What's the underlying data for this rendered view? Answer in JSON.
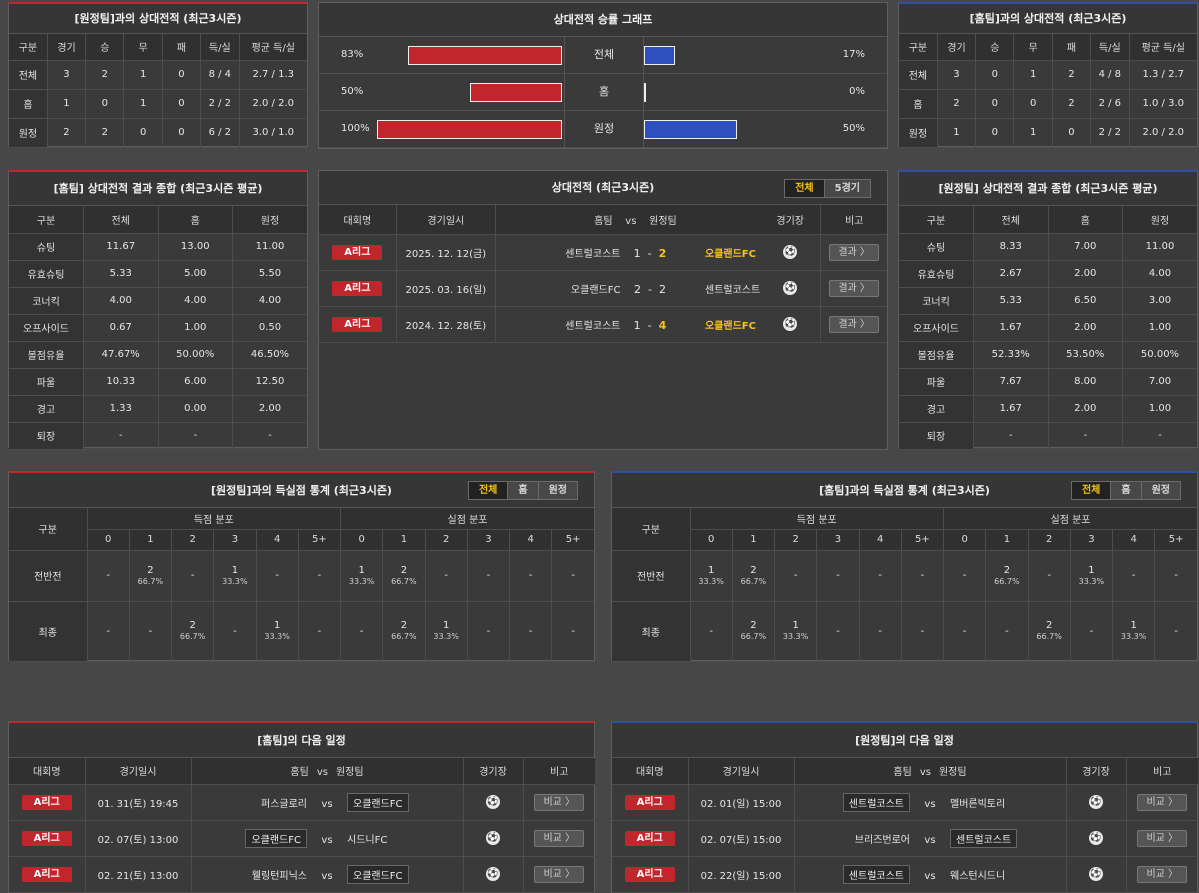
{
  "h2h_away_left": {
    "title": "[원정팀]과의 상대전적 (최근3시즌)",
    "headers": [
      "구분",
      "경기",
      "승",
      "무",
      "패",
      "득/실",
      "평균 득/실"
    ],
    "rows": [
      [
        "전체",
        "3",
        "2",
        "1",
        "0",
        "8 / 4",
        "2.7 / 1.3"
      ],
      [
        "홈",
        "1",
        "0",
        "1",
        "0",
        "2 / 2",
        "2.0 / 2.0"
      ],
      [
        "원정",
        "2",
        "2",
        "0",
        "0",
        "6 / 2",
        "3.0 / 1.0"
      ]
    ]
  },
  "h2h_home_right": {
    "title": "[홈팀]과의 상대전적 (최근3시즌)",
    "headers": [
      "구분",
      "경기",
      "승",
      "무",
      "패",
      "득/실",
      "평균 득/실"
    ],
    "rows": [
      [
        "전체",
        "3",
        "0",
        "1",
        "2",
        "4 / 8",
        "1.3 / 2.7"
      ],
      [
        "홈",
        "2",
        "0",
        "0",
        "2",
        "2 / 6",
        "1.0 / 3.0"
      ],
      [
        "원정",
        "1",
        "0",
        "1",
        "0",
        "2 / 2",
        "2.0 / 2.0"
      ]
    ]
  },
  "win_graph": {
    "title": "상대전적 승률 그래프",
    "rows": [
      {
        "label": "전체",
        "left": "83%",
        "right": "17%",
        "left_value": 83,
        "right_value": 17
      },
      {
        "label": "홈",
        "left": "50%",
        "right": "0%",
        "left_value": 50,
        "right_value": 0
      },
      {
        "label": "원정",
        "left": "100%",
        "right": "50%",
        "left_value": 100,
        "right_value": 50
      }
    ]
  },
  "summary_home": {
    "title": "[홈팀] 상대전적 결과 종합 (최근3시즌 평균)",
    "headers": [
      "구분",
      "전체",
      "홈",
      "원정"
    ],
    "rows": [
      [
        "슈팅",
        "11.67",
        "13.00",
        "11.00"
      ],
      [
        "유효슈팅",
        "5.33",
        "5.00",
        "5.50"
      ],
      [
        "코너킥",
        "4.00",
        "4.00",
        "4.00"
      ],
      [
        "오프사이드",
        "0.67",
        "1.00",
        "0.50"
      ],
      [
        "볼점유율",
        "47.67%",
        "50.00%",
        "46.50%"
      ],
      [
        "파울",
        "10.33",
        "6.00",
        "12.50"
      ],
      [
        "경고",
        "1.33",
        "0.00",
        "2.00"
      ],
      [
        "퇴장",
        "-",
        "-",
        "-"
      ]
    ]
  },
  "summary_away": {
    "title": "[원정팀] 상대전적 결과 종합 (최근3시즌 평균)",
    "headers": [
      "구분",
      "전체",
      "홈",
      "원정"
    ],
    "rows": [
      [
        "슈팅",
        "8.33",
        "7.00",
        "11.00"
      ],
      [
        "유효슈팅",
        "2.67",
        "2.00",
        "4.00"
      ],
      [
        "코너킥",
        "5.33",
        "6.50",
        "3.00"
      ],
      [
        "오프사이드",
        "1.67",
        "2.00",
        "1.00"
      ],
      [
        "볼점유율",
        "52.33%",
        "53.50%",
        "50.00%"
      ],
      [
        "파울",
        "7.67",
        "8.00",
        "7.00"
      ],
      [
        "경고",
        "1.67",
        "2.00",
        "1.00"
      ],
      [
        "퇴장",
        "-",
        "-",
        "-"
      ]
    ]
  },
  "recent": {
    "title": "상대전적 (최근3시즌)",
    "tabs": [
      "전체",
      "5경기"
    ],
    "headers": {
      "league": "대회명",
      "date": "경기일시",
      "home": "홈팀",
      "vs": "vs",
      "away": "원정팀",
      "stadium": "경기장",
      "note": "비고"
    },
    "matches": [
      {
        "league": "A리그",
        "date": "2025. 12. 12(금)",
        "home": "센트럴코스트",
        "hs": "1",
        "sep": "-",
        "as": "2",
        "away": "오클랜드FC",
        "btn": "결과 〉"
      },
      {
        "league": "A리그",
        "date": "2025. 03. 16(일)",
        "home": "오클랜드FC",
        "hs": "2",
        "sep": "-",
        "as": "2",
        "away": "센트럴코스트",
        "btn": "결과 〉"
      },
      {
        "league": "A리그",
        "date": "2024. 12. 28(토)",
        "home": "센트럴코스트",
        "hs": "1",
        "sep": "-",
        "as": "4",
        "away": "오클랜드FC",
        "btn": "결과 〉"
      }
    ]
  },
  "goals_left": {
    "title": "[원정팀]과의 득실점 통계 (최근3시즌)",
    "tabs": [
      "전체",
      "홈",
      "원정"
    ],
    "col0": "구분",
    "scored": "득점 분포",
    "conceded": "실점 분포",
    "cols": [
      "0",
      "1",
      "2",
      "3",
      "4",
      "5+"
    ],
    "rows": [
      {
        "label": "전반전",
        "cells": [
          [
            "-",
            ""
          ],
          [
            "2",
            "66.7%"
          ],
          [
            "-",
            ""
          ],
          [
            "1",
            "33.3%"
          ],
          [
            "-",
            ""
          ],
          [
            "-",
            ""
          ],
          [
            "1",
            "33.3%"
          ],
          [
            "2",
            "66.7%"
          ],
          [
            "-",
            ""
          ],
          [
            "-",
            ""
          ],
          [
            "-",
            ""
          ],
          [
            "-",
            ""
          ]
        ]
      },
      {
        "label": "최종",
        "cells": [
          [
            "-",
            ""
          ],
          [
            "-",
            ""
          ],
          [
            "2",
            "66.7%"
          ],
          [
            "-",
            ""
          ],
          [
            "1",
            "33.3%"
          ],
          [
            "-",
            ""
          ],
          [
            "-",
            ""
          ],
          [
            "2",
            "66.7%"
          ],
          [
            "1",
            "33.3%"
          ],
          [
            "-",
            ""
          ],
          [
            "-",
            ""
          ],
          [
            "-",
            ""
          ]
        ]
      }
    ]
  },
  "goals_right": {
    "title": "[홈팀]과의 득실점 통계 (최근3시즌)",
    "tabs": [
      "전체",
      "홈",
      "원정"
    ],
    "col0": "구분",
    "scored": "득점 분포",
    "conceded": "실점 분포",
    "cols": [
      "0",
      "1",
      "2",
      "3",
      "4",
      "5+"
    ],
    "rows": [
      {
        "label": "전반전",
        "cells": [
          [
            "1",
            "33.3%"
          ],
          [
            "2",
            "66.7%"
          ],
          [
            "-",
            ""
          ],
          [
            "-",
            ""
          ],
          [
            "-",
            ""
          ],
          [
            "-",
            ""
          ],
          [
            "-",
            ""
          ],
          [
            "2",
            "66.7%"
          ],
          [
            "-",
            ""
          ],
          [
            "1",
            "33.3%"
          ],
          [
            "-",
            ""
          ],
          [
            "-",
            ""
          ]
        ]
      },
      {
        "label": "최종",
        "cells": [
          [
            "-",
            ""
          ],
          [
            "2",
            "66.7%"
          ],
          [
            "1",
            "33.3%"
          ],
          [
            "-",
            ""
          ],
          [
            "-",
            ""
          ],
          [
            "-",
            ""
          ],
          [
            "-",
            ""
          ],
          [
            "-",
            ""
          ],
          [
            "2",
            "66.7%"
          ],
          [
            "-",
            ""
          ],
          [
            "1",
            "33.3%"
          ],
          [
            "-",
            ""
          ]
        ]
      }
    ]
  },
  "next_home": {
    "title": "[홈팀]의 다음 일정",
    "headers": {
      "league": "대회명",
      "date": "경기일시",
      "home": "홈팀",
      "vs": "vs",
      "away": "원정팀",
      "stadium": "경기장",
      "note": "비고"
    },
    "matches": [
      {
        "league": "A리그",
        "date": "01. 31(토) 19:45",
        "home": "퍼스글로리",
        "vs": "vs",
        "away": "오클랜드FC",
        "hl": "away",
        "btn": "비교 〉"
      },
      {
        "league": "A리그",
        "date": "02. 07(토) 13:00",
        "home": "오클랜드FC",
        "vs": "vs",
        "away": "시드니FC",
        "hl": "home",
        "btn": "비교 〉"
      },
      {
        "league": "A리그",
        "date": "02. 21(토) 13:00",
        "home": "웰링턴피닉스",
        "vs": "vs",
        "away": "오클랜드FC",
        "hl": "away",
        "btn": "비교 〉"
      }
    ]
  },
  "next_away": {
    "title": "[원정팀]의 다음 일정",
    "headers": {
      "league": "대회명",
      "date": "경기일시",
      "home": "홈팀",
      "vs": "vs",
      "away": "원정팀",
      "stadium": "경기장",
      "note": "비고"
    },
    "matches": [
      {
        "league": "A리그",
        "date": "02. 01(일) 15:00",
        "home": "센트럴코스트",
        "vs": "vs",
        "away": "멜버른빅토리",
        "hl": "home",
        "btn": "비교 〉"
      },
      {
        "league": "A리그",
        "date": "02. 07(토) 15:00",
        "home": "브리즈번로어",
        "vs": "vs",
        "away": "센트럴코스트",
        "hl": "away",
        "btn": "비교 〉"
      },
      {
        "league": "A리그",
        "date": "02. 22(일) 15:00",
        "home": "센트럴코스트",
        "vs": "vs",
        "away": "웨스턴시드니",
        "hl": "home",
        "btn": "비교 〉"
      }
    ]
  },
  "colors": {
    "home_accent": "#c0262c",
    "away_accent": "#2d4fa6",
    "highlight": "#f5c518"
  },
  "icons": {
    "stadium": "soccer-ball-icon"
  }
}
